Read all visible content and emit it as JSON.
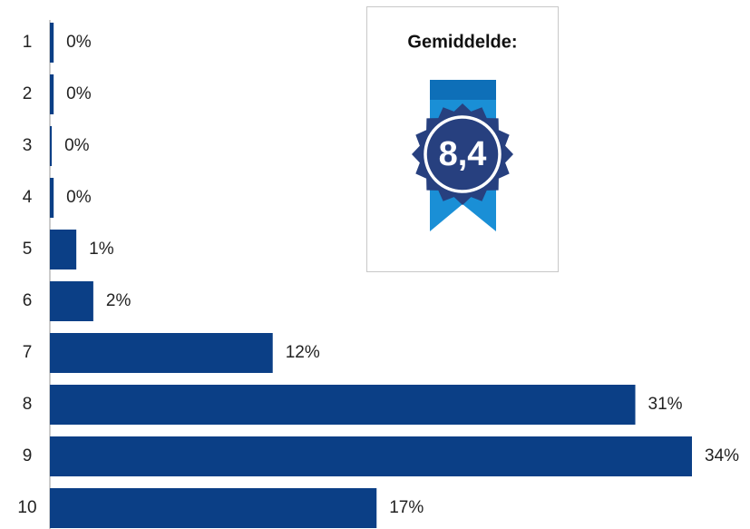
{
  "chart_data": {
    "type": "hbar",
    "categories": [
      "1",
      "2",
      "3",
      "4",
      "5",
      "6",
      "7",
      "8",
      "9",
      "10"
    ],
    "values": [
      0.2,
      0.2,
      0.1,
      0.2,
      1.4,
      2.3,
      11.8,
      31,
      34,
      17.3
    ],
    "value_labels": [
      "0%",
      "0%",
      "0%",
      "0%",
      "1%",
      "2%",
      "12%",
      "31%",
      "34%",
      "17%"
    ],
    "color": "#0b3f86",
    "annotation_title": "Gemiddelde:",
    "annotation_text": "8,4"
  }
}
